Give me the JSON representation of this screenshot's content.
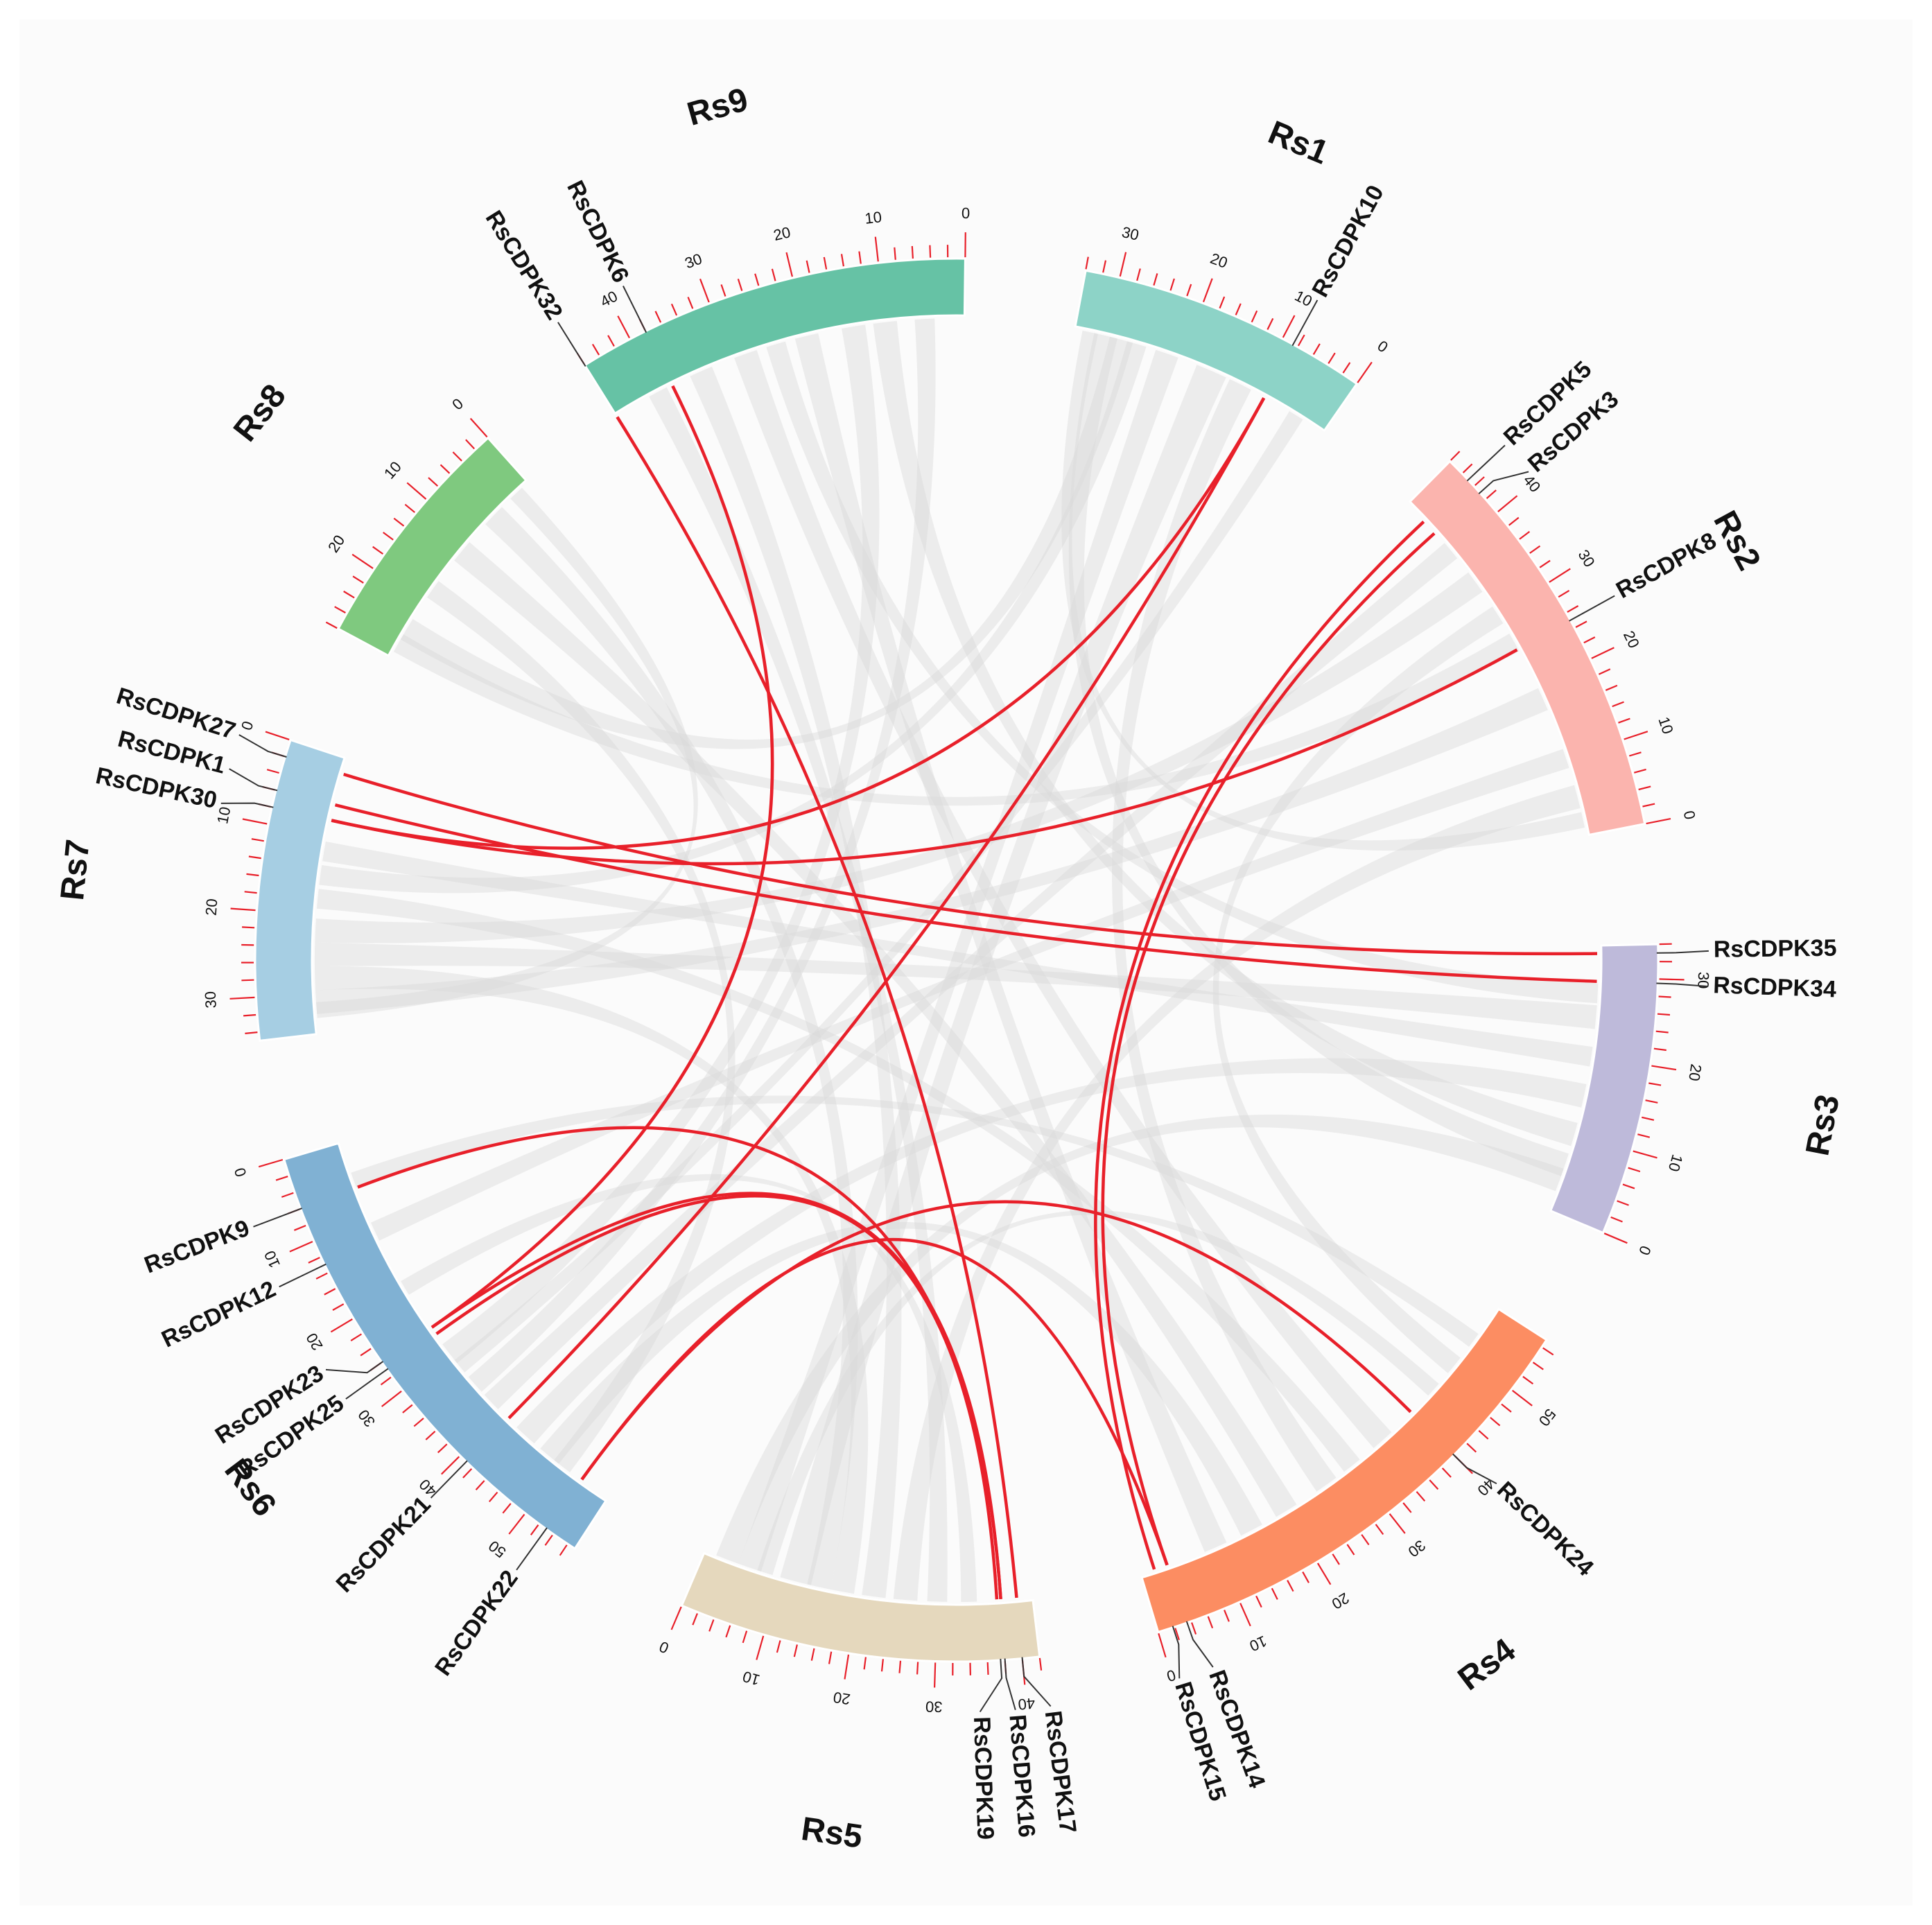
{
  "chart_data": {
    "type": "circos",
    "units": "Mb",
    "colors": {
      "tick": "#e8202a",
      "link_highlight": "#e8202a",
      "link_background": "#d9d9d9"
    },
    "chromosomes": [
      {
        "name": "Rs1",
        "length": 34,
        "color": "#8dd3c7",
        "ticks": [
          "0",
          "10",
          "20",
          "30"
        ]
      },
      {
        "name": "Rs2",
        "length": 48,
        "color": "#fbb4ae",
        "ticks": [
          "0",
          "10",
          "20",
          "30",
          "40"
        ]
      },
      {
        "name": "Rs3",
        "length": 34,
        "color": "#bebada",
        "ticks": [
          "0",
          "10",
          "20",
          "30"
        ]
      },
      {
        "name": "Rs4",
        "length": 57,
        "color": "#fc8d62",
        "ticks": [
          "0",
          "10",
          "20",
          "30",
          "40",
          "50"
        ]
      },
      {
        "name": "Rs5",
        "length": 42,
        "color": "#e5d8bd",
        "ticks": [
          "0",
          "10",
          "20",
          "30",
          "40"
        ]
      },
      {
        "name": "Rs6",
        "length": 57,
        "color": "#80b1d3",
        "ticks": [
          "0",
          "10",
          "20",
          "30",
          "40",
          "50"
        ]
      },
      {
        "name": "Rs7",
        "length": 35,
        "color": "#a6cee3",
        "ticks": [
          "0",
          "10",
          "20",
          "30"
        ]
      },
      {
        "name": "Rs8",
        "length": 28,
        "color": "#7fc97f",
        "ticks": [
          "0",
          "10",
          "20"
        ]
      },
      {
        "name": "Rs9",
        "length": 46,
        "color": "#66c2a5",
        "ticks": [
          "0",
          "10",
          "20",
          "30",
          "40"
        ]
      }
    ],
    "genes": [
      {
        "name": "RsCDPK10",
        "chr": "Rs1",
        "pos": 8.6
      },
      {
        "name": "RsCDPK3",
        "chr": "Rs2",
        "pos": 43
      },
      {
        "name": "RsCDPK5",
        "chr": "Rs2",
        "pos": 45
      },
      {
        "name": "RsCDPK8",
        "chr": "Rs2",
        "pos": 25
      },
      {
        "name": "RsCDPK34",
        "chr": "Rs3",
        "pos": 29.5
      },
      {
        "name": "RsCDPK35",
        "chr": "Rs3",
        "pos": 33
      },
      {
        "name": "RsCDPK14",
        "chr": "Rs4",
        "pos": 3.5
      },
      {
        "name": "RsCDPK15",
        "chr": "Rs4",
        "pos": 1.8
      },
      {
        "name": "RsCDPK24",
        "chr": "Rs4",
        "pos": 40
      },
      {
        "name": "RsCDPK17",
        "chr": "Rs5",
        "pos": 40
      },
      {
        "name": "RsCDPK16",
        "chr": "Rs5",
        "pos": 38
      },
      {
        "name": "RsCDPK19",
        "chr": "Rs5",
        "pos": 37.5
      },
      {
        "name": "RsCDPK9",
        "chr": "Rs6",
        "pos": 6
      },
      {
        "name": "RsCDPK12",
        "chr": "Rs6",
        "pos": 13
      },
      {
        "name": "RsCDPK23",
        "chr": "Rs6",
        "pos": 26
      },
      {
        "name": "RsCDPK25",
        "chr": "Rs6",
        "pos": 27
      },
      {
        "name": "RsCDPK21",
        "chr": "Rs6",
        "pos": 41
      },
      {
        "name": "RsCDPK22",
        "chr": "Rs6",
        "pos": 53
      },
      {
        "name": "RsCDPK27",
        "chr": "Rs7",
        "pos": 2
      },
      {
        "name": "RsCDPK1",
        "chr": "Rs7",
        "pos": 6
      },
      {
        "name": "RsCDPK30",
        "chr": "Rs7",
        "pos": 8
      },
      {
        "name": "RsCDPK6",
        "chr": "Rs9",
        "pos": 38
      },
      {
        "name": "RsCDPK32",
        "chr": "Rs9",
        "pos": 46
      }
    ],
    "highlight_links": [
      [
        "RsCDPK27",
        "RsCDPK35"
      ],
      [
        "RsCDPK1",
        "RsCDPK34"
      ],
      [
        "RsCDPK30",
        "RsCDPK8"
      ],
      [
        "RsCDPK30",
        "RsCDPK10"
      ],
      [
        "RsCDPK22",
        "RsCDPK14"
      ],
      [
        "RsCDPK22",
        "RsCDPK24"
      ],
      [
        "RsCDPK21",
        "RsCDPK10"
      ],
      [
        "RsCDPK23",
        "RsCDPK6"
      ],
      [
        "RsCDPK25",
        "RsCDPK19"
      ],
      [
        "RsCDPK23",
        "RsCDPK16"
      ],
      [
        "RsCDPK9",
        "RsCDPK16"
      ],
      [
        "RsCDPK17",
        "RsCDPK32"
      ],
      [
        "RsCDPK15",
        "RsCDPK5"
      ],
      [
        "RsCDPK14",
        "RsCDPK3"
      ]
    ],
    "background_links": [
      [
        "Rs7",
        22,
        "Rs2",
        35,
        3
      ],
      [
        "Rs7",
        25,
        "Rs3",
        25,
        3
      ],
      [
        "Rs7",
        15,
        "Rs1",
        26,
        2.5
      ],
      [
        "Rs8",
        12,
        "Rs4",
        20,
        3
      ],
      [
        "Rs8",
        24,
        "Rs1",
        28,
        3
      ],
      [
        "Rs8",
        6,
        "Rs5",
        15,
        3
      ],
      [
        "Rs9",
        20,
        "Rs4",
        10,
        3
      ],
      [
        "Rs9",
        34,
        "Rs5",
        22,
        3
      ],
      [
        "Rs9",
        40,
        "Rs5",
        30,
        2.5
      ],
      [
        "Rs9",
        10,
        "Rs3",
        10,
        3
      ],
      [
        "Rs9",
        5,
        "Rs6",
        35,
        2.5
      ],
      [
        "Rs1",
        16,
        "Rs5",
        12,
        4
      ],
      [
        "Rs1",
        22,
        "Rs5",
        6,
        3
      ],
      [
        "Rs1",
        12,
        "Rs4",
        26,
        3
      ],
      [
        "Rs1",
        4,
        "Rs6",
        32,
        2
      ],
      [
        "Rs1",
        30,
        "Rs3",
        6,
        3
      ],
      [
        "Rs2",
        5,
        "Rs5",
        26,
        3
      ],
      [
        "Rs2",
        10,
        "Rs6",
        12,
        2.5
      ],
      [
        "Rs2",
        18,
        "Rs7",
        31,
        3
      ],
      [
        "Rs2",
        30,
        "Rs4",
        48,
        2.5
      ],
      [
        "Rs3",
        15,
        "Rs6",
        44,
        3
      ],
      [
        "Rs3",
        20,
        "Rs7",
        12,
        2.5
      ],
      [
        "Rs3",
        4,
        "Rs5",
        3,
        3
      ],
      [
        "Rs4",
        15,
        "Rs6",
        48,
        3
      ],
      [
        "Rs4",
        30,
        "Rs7",
        18,
        2.5
      ],
      [
        "Rs4",
        35,
        "Rs9",
        28,
        3
      ],
      [
        "Rs4",
        44,
        "Rs5",
        8,
        2
      ],
      [
        "Rs4",
        52,
        "Rs6",
        5,
        2
      ],
      [
        "Rs5",
        18,
        "Rs7",
        28,
        3
      ],
      [
        "Rs5",
        34,
        "Rs6",
        20,
        2
      ],
      [
        "Rs6",
        30,
        "Rs9",
        14,
        3
      ],
      [
        "Rs6",
        50,
        "Rs8",
        18,
        2.5
      ],
      [
        "Rs6",
        38,
        "Rs2",
        40,
        2.5
      ],
      [
        "Rs7",
        32,
        "Rs8",
        2,
        2
      ],
      [
        "Rs3",
        28,
        "Rs9",
        24,
        2.5
      ],
      [
        "Rs2",
        26,
        "Rs8",
        26,
        2.5
      ],
      [
        "Rs1",
        32,
        "Rs2",
        2,
        2
      ]
    ]
  }
}
